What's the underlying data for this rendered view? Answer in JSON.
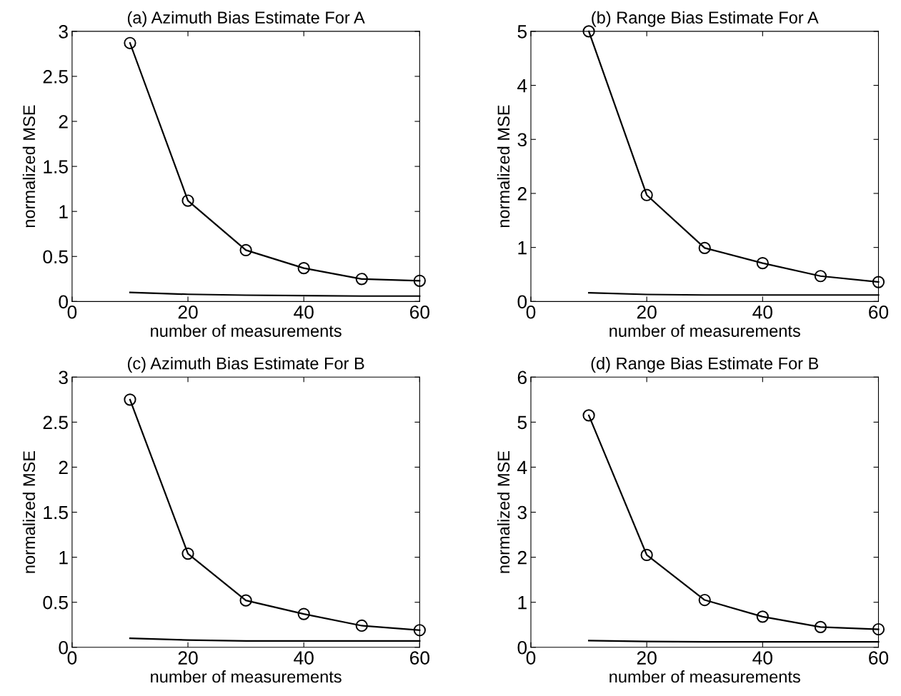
{
  "chart_data": [
    {
      "type": "line",
      "title": "(a) Azimuth Bias Estimate For A",
      "xlabel": "number of measurements",
      "ylabel": "normalized MSE",
      "x": [
        10,
        20,
        30,
        40,
        50,
        60
      ],
      "xlim": [
        0,
        60
      ],
      "xticks": [
        0,
        20,
        40,
        60
      ],
      "ylim": [
        0,
        3
      ],
      "yticks": [
        0,
        0.5,
        1,
        1.5,
        2,
        2.5,
        3
      ],
      "grid": false,
      "series": [
        {
          "color": "#000000",
          "marker": "circle",
          "values": [
            2.87,
            1.12,
            0.57,
            0.37,
            0.25,
            0.23
          ]
        },
        {
          "color": "#000000",
          "marker": "none",
          "values": [
            0.1,
            0.08,
            0.07,
            0.065,
            0.06,
            0.06
          ]
        }
      ]
    },
    {
      "type": "line",
      "title": "(b) Range Bias Estimate For A",
      "xlabel": "number of measurements",
      "ylabel": "normalized MSE",
      "x": [
        10,
        20,
        30,
        40,
        50,
        60
      ],
      "xlim": [
        0,
        60
      ],
      "xticks": [
        0,
        20,
        40,
        60
      ],
      "ylim": [
        0,
        5
      ],
      "yticks": [
        0,
        1,
        2,
        3,
        4,
        5
      ],
      "grid": false,
      "series": [
        {
          "color": "#000000",
          "marker": "circle",
          "values": [
            5.0,
            1.97,
            0.99,
            0.71,
            0.47,
            0.36
          ]
        },
        {
          "color": "#000000",
          "marker": "none",
          "values": [
            0.16,
            0.13,
            0.12,
            0.12,
            0.12,
            0.12
          ]
        }
      ]
    },
    {
      "type": "line",
      "title": "(c) Azimuth Bias Estimate For B",
      "xlabel": "number of measurements",
      "ylabel": "normalized MSE",
      "x": [
        10,
        20,
        30,
        40,
        50,
        60
      ],
      "xlim": [
        0,
        60
      ],
      "xticks": [
        0,
        20,
        40,
        60
      ],
      "ylim": [
        0,
        3
      ],
      "yticks": [
        0,
        0.5,
        1,
        1.5,
        2,
        2.5,
        3
      ],
      "grid": false,
      "series": [
        {
          "color": "#000000",
          "marker": "circle",
          "values": [
            2.75,
            1.04,
            0.52,
            0.37,
            0.24,
            0.19
          ]
        },
        {
          "color": "#000000",
          "marker": "none",
          "values": [
            0.1,
            0.08,
            0.07,
            0.07,
            0.07,
            0.07
          ]
        }
      ]
    },
    {
      "type": "line",
      "title": "(d) Range Bias Estimate For B",
      "xlabel": "number of measurements",
      "ylabel": "normalized MSE",
      "x": [
        10,
        20,
        30,
        40,
        50,
        60
      ],
      "xlim": [
        0,
        60
      ],
      "xticks": [
        0,
        20,
        40,
        60
      ],
      "ylim": [
        0,
        6
      ],
      "yticks": [
        0,
        1,
        2,
        3,
        4,
        5,
        6
      ],
      "grid": false,
      "series": [
        {
          "color": "#000000",
          "marker": "circle",
          "values": [
            5.15,
            2.05,
            1.05,
            0.68,
            0.45,
            0.4
          ]
        },
        {
          "color": "#000000",
          "marker": "none",
          "values": [
            0.15,
            0.13,
            0.12,
            0.12,
            0.12,
            0.12
          ]
        }
      ]
    }
  ]
}
